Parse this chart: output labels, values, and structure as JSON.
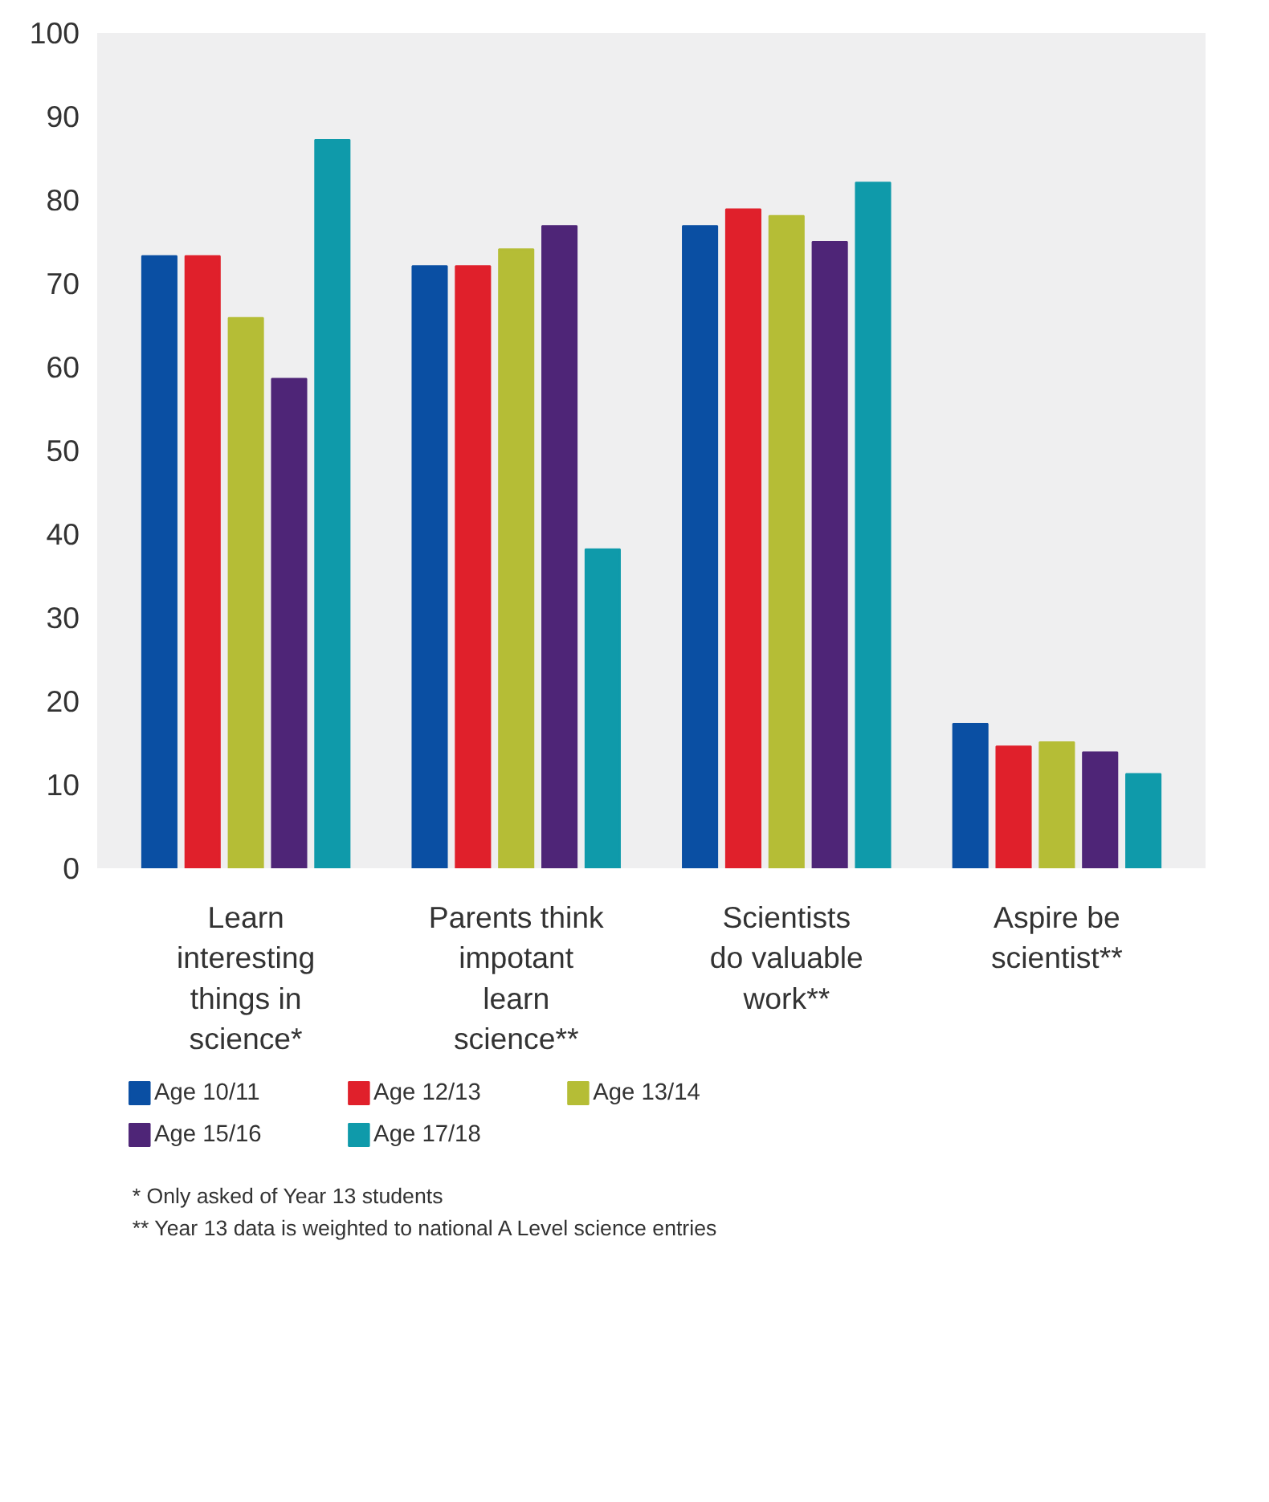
{
  "chart_data": {
    "type": "bar",
    "categories": [
      "Learn\ninteresting\nthings in\nscience*",
      "Parents think\nimpotant\nlearn\nscience**",
      "Scientists\ndo valuable\nwork**",
      "Aspire be\nscientist**"
    ],
    "series": [
      {
        "name": "Age 10/11",
        "color": "#0a4fa3",
        "values": [
          73.3,
          72.1,
          76.9,
          17.3
        ]
      },
      {
        "name": "Age 12/13",
        "color": "#e0202b",
        "values": [
          73.3,
          72.1,
          78.9,
          14.6
        ]
      },
      {
        "name": "Age 13/14",
        "color": "#b5bd36",
        "values": [
          65.9,
          74.1,
          78.1,
          15.1
        ]
      },
      {
        "name": "Age 15/16",
        "color": "#4e2577",
        "values": [
          58.6,
          76.9,
          75.0,
          13.9
        ]
      },
      {
        "name": "Age 17/18",
        "color": "#0f9aaa",
        "values": [
          87.2,
          38.2,
          82.1,
          11.3
        ]
      }
    ],
    "ylim": [
      0,
      100
    ],
    "yticks": [
      0,
      10,
      20,
      30,
      40,
      50,
      60,
      70,
      80,
      90,
      100
    ],
    "grid": false,
    "legend": "bottom",
    "annotations": [
      "* Only asked of Year 13 students",
      "** Year 13 data is weighted to national A Level science entries"
    ]
  }
}
